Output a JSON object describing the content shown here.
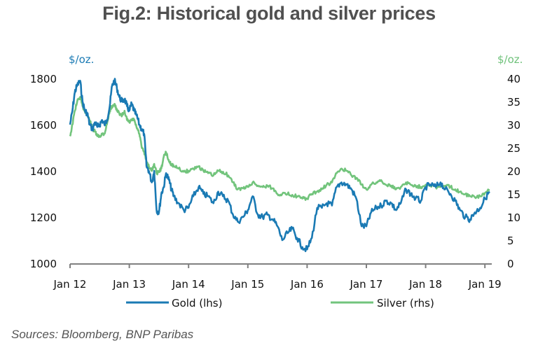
{
  "chart_data": {
    "type": "line",
    "title": "Fig.2: Historical gold and silver prices",
    "source": "Sources: Bloomberg, BNP Paribas",
    "x_ticks": [
      "Jan 12",
      "Jan 13",
      "Jan 14",
      "Jan 15",
      "Jan 16",
      "Jan 17",
      "Jan 18",
      "Jan 19"
    ],
    "x_range_years": [
      2012.0,
      2019.1
    ],
    "left_axis": {
      "label": "$/oz.",
      "ticks": [
        1000,
        1200,
        1400,
        1600,
        1800
      ],
      "ylim": [
        1000,
        1800
      ]
    },
    "right_axis": {
      "label": "$/oz.",
      "ticks": [
        0,
        5,
        10,
        15,
        20,
        25,
        30,
        35,
        40
      ],
      "ylim": [
        0,
        40
      ]
    },
    "grid": false,
    "legend": {
      "placement": "bottom",
      "entries": [
        "Gold (lhs)",
        "Silver (rhs)"
      ]
    },
    "colors": {
      "gold": "#1a7ab4",
      "silver": "#72c47c",
      "axis": "#808080",
      "left_unit": "#1a7ab4",
      "right_unit": "#6ec17a"
    },
    "series": [
      {
        "name": "Gold (lhs)",
        "axis": "left",
        "x": [
          2012.0,
          2012.04,
          2012.08,
          2012.12,
          2012.17,
          2012.21,
          2012.25,
          2012.29,
          2012.33,
          2012.38,
          2012.42,
          2012.46,
          2012.5,
          2012.54,
          2012.58,
          2012.62,
          2012.67,
          2012.71,
          2012.75,
          2012.79,
          2012.83,
          2012.88,
          2012.92,
          2012.96,
          2013.0,
          2013.04,
          2013.08,
          2013.12,
          2013.17,
          2013.21,
          2013.25,
          2013.29,
          2013.33,
          2013.38,
          2013.42,
          2013.46,
          2013.5,
          2013.54,
          2013.58,
          2013.62,
          2013.67,
          2013.71,
          2013.75,
          2013.83,
          2013.92,
          2014.0,
          2014.08,
          2014.17,
          2014.25,
          2014.33,
          2014.42,
          2014.5,
          2014.58,
          2014.67,
          2014.75,
          2014.83,
          2014.92,
          2015.0,
          2015.08,
          2015.17,
          2015.25,
          2015.33,
          2015.42,
          2015.5,
          2015.58,
          2015.67,
          2015.75,
          2015.83,
          2015.92,
          2016.0,
          2016.08,
          2016.17,
          2016.25,
          2016.33,
          2016.42,
          2016.5,
          2016.58,
          2016.67,
          2016.75,
          2016.83,
          2016.92,
          2017.0,
          2017.08,
          2017.17,
          2017.25,
          2017.33,
          2017.42,
          2017.5,
          2017.58,
          2017.67,
          2017.75,
          2017.83,
          2017.92,
          2018.0,
          2018.08,
          2018.17,
          2018.25,
          2018.33,
          2018.42,
          2018.5,
          2018.58,
          2018.67,
          2018.75,
          2018.83,
          2018.92,
          2019.0,
          2019.08
        ],
        "y": [
          1600,
          1660,
          1740,
          1770,
          1790,
          1700,
          1660,
          1650,
          1600,
          1580,
          1610,
          1590,
          1600,
          1620,
          1600,
          1620,
          1680,
          1770,
          1790,
          1760,
          1720,
          1700,
          1710,
          1680,
          1660,
          1690,
          1660,
          1640,
          1600,
          1580,
          1560,
          1420,
          1400,
          1350,
          1400,
          1230,
          1220,
          1300,
          1330,
          1390,
          1360,
          1320,
          1290,
          1260,
          1230,
          1240,
          1290,
          1330,
          1300,
          1290,
          1260,
          1310,
          1290,
          1270,
          1210,
          1180,
          1200,
          1230,
          1290,
          1210,
          1200,
          1210,
          1190,
          1160,
          1100,
          1130,
          1150,
          1110,
          1070,
          1060,
          1110,
          1240,
          1240,
          1260,
          1250,
          1330,
          1350,
          1340,
          1320,
          1280,
          1160,
          1160,
          1220,
          1240,
          1250,
          1270,
          1260,
          1230,
          1260,
          1320,
          1300,
          1280,
          1270,
          1330,
          1340,
          1330,
          1350,
          1320,
          1300,
          1270,
          1230,
          1200,
          1190,
          1220,
          1240,
          1280,
          1310
        ],
        "y_note": "approximate, read from chart pixels"
      },
      {
        "name": "Silver (rhs)",
        "axis": "right",
        "x": [
          2012.0,
          2012.04,
          2012.08,
          2012.12,
          2012.17,
          2012.21,
          2012.25,
          2012.29,
          2012.33,
          2012.38,
          2012.42,
          2012.46,
          2012.5,
          2012.54,
          2012.58,
          2012.62,
          2012.67,
          2012.71,
          2012.75,
          2012.79,
          2012.83,
          2012.88,
          2012.92,
          2012.96,
          2013.0,
          2013.04,
          2013.08,
          2013.12,
          2013.17,
          2013.21,
          2013.25,
          2013.29,
          2013.33,
          2013.38,
          2013.42,
          2013.46,
          2013.5,
          2013.54,
          2013.58,
          2013.62,
          2013.67,
          2013.71,
          2013.75,
          2013.83,
          2013.92,
          2014.0,
          2014.08,
          2014.17,
          2014.25,
          2014.33,
          2014.42,
          2014.5,
          2014.58,
          2014.67,
          2014.75,
          2014.83,
          2014.92,
          2015.0,
          2015.08,
          2015.17,
          2015.25,
          2015.33,
          2015.42,
          2015.5,
          2015.58,
          2015.67,
          2015.75,
          2015.83,
          2015.92,
          2016.0,
          2016.08,
          2016.17,
          2016.25,
          2016.33,
          2016.42,
          2016.5,
          2016.58,
          2016.67,
          2016.75,
          2016.83,
          2016.92,
          2017.0,
          2017.08,
          2017.17,
          2017.25,
          2017.33,
          2017.42,
          2017.5,
          2017.58,
          2017.67,
          2017.75,
          2017.83,
          2017.92,
          2018.0,
          2018.08,
          2018.17,
          2018.25,
          2018.33,
          2018.42,
          2018.5,
          2018.58,
          2018.67,
          2018.75,
          2018.83,
          2018.92,
          2019.0,
          2019.08
        ],
        "y": [
          27.5,
          30,
          33,
          35,
          36,
          34,
          33,
          32,
          31,
          29,
          28.5,
          27.5,
          27.5,
          28,
          28,
          30,
          33,
          34,
          34.5,
          33,
          32.5,
          32,
          33,
          31,
          30.5,
          31,
          31,
          29.5,
          28,
          25,
          24,
          22,
          21,
          20,
          21.5,
          19.5,
          19.8,
          20.5,
          23,
          24,
          22,
          21.5,
          21,
          20.5,
          19.8,
          20,
          20.5,
          21,
          20,
          19.5,
          19,
          20,
          19.8,
          19,
          17.5,
          16,
          16.2,
          16.5,
          17.5,
          16.8,
          16.5,
          16.8,
          16.2,
          15,
          15,
          15,
          14.8,
          14.5,
          14,
          14,
          15,
          15.5,
          16,
          17,
          17.5,
          19.5,
          20.5,
          20,
          19,
          18.5,
          17,
          16,
          17,
          17.5,
          18,
          17,
          16.8,
          16,
          16.5,
          17.5,
          17,
          16.8,
          16.5,
          17,
          17,
          16.5,
          16.5,
          16.8,
          16.5,
          16,
          15.5,
          15,
          14.5,
          14.3,
          14.5,
          15.2,
          15.8
        ]
      }
    ]
  }
}
